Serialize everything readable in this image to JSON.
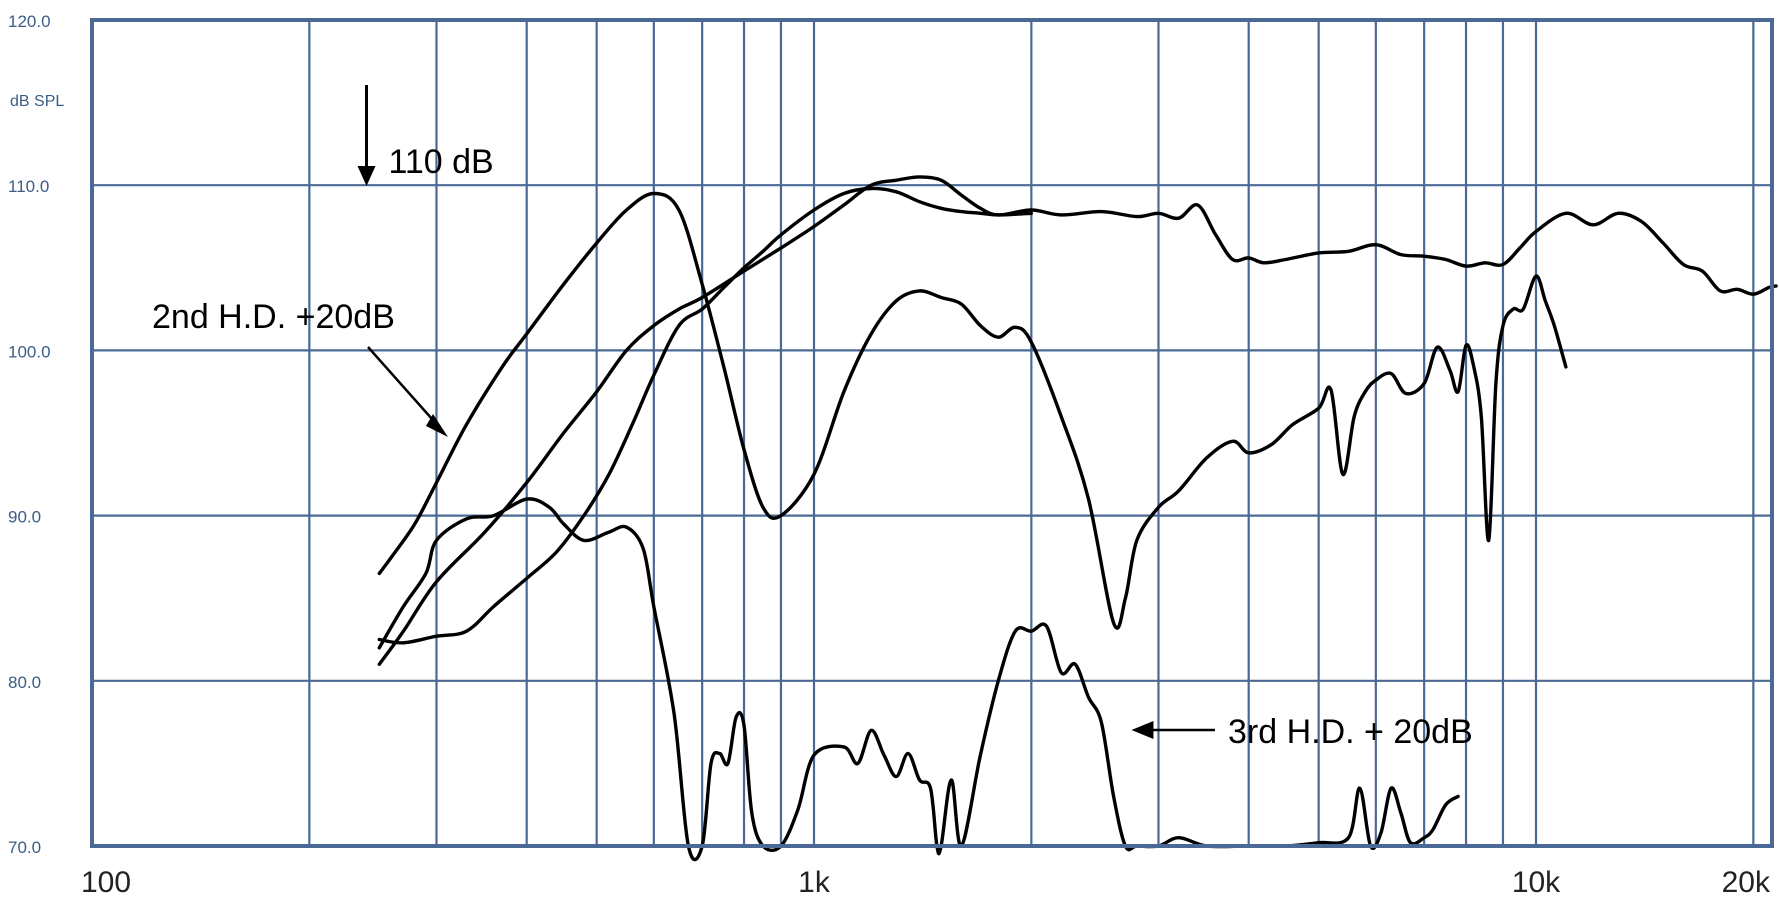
{
  "chart_data": {
    "type": "line",
    "title": "",
    "xlabel": "",
    "ylabel": "",
    "y_unit": "dB SPL",
    "x_scale": "log",
    "xlim": [
      100,
      22000
    ],
    "ylim": [
      70,
      120
    ],
    "grid": true,
    "y_ticks": [
      {
        "value": 120,
        "label": "120.0"
      },
      {
        "value": 110,
        "label": "110.0"
      },
      {
        "value": 100,
        "label": "100.0"
      },
      {
        "value": 90,
        "label": "90.0"
      },
      {
        "value": 80,
        "label": "80.0"
      },
      {
        "value": 70,
        "label": "70.0"
      }
    ],
    "x_ticks": [
      {
        "value": 100,
        "label": "100"
      },
      {
        "value": 1000,
        "label": "1k"
      },
      {
        "value": 10000,
        "label": "10k"
      },
      {
        "value": 20000,
        "label": "20k"
      }
    ],
    "annotations": [
      {
        "text": "110 dB",
        "x": 240,
        "y": 110
      },
      {
        "text": "2nd H.D. +20dB",
        "x": 300,
        "y": 95
      },
      {
        "text": "3rd H.D. + 20dB",
        "x": 2700,
        "y": 77
      }
    ],
    "series": [
      {
        "name": "",
        "x": [
          250,
          270,
          300,
          350,
          400,
          450,
          500,
          550,
          600,
          650,
          700,
          800,
          900,
          1000,
          1100,
          1200,
          1300,
          1400,
          1500,
          1600,
          1700,
          1800,
          2000,
          2200,
          2500,
          2800,
          3000,
          3200,
          3400,
          3600,
          3800,
          4000,
          4200,
          4500,
          5000,
          5500,
          6000,
          6500,
          7000,
          7500,
          8000,
          8500,
          9000,
          9500,
          10000,
          11000,
          12000,
          13000,
          14000,
          15000,
          16000,
          17000,
          18000,
          19000,
          20000,
          21000,
          21500
        ],
        "values": [
          81,
          83,
          86,
          89,
          92,
          95,
          97.5,
          100,
          101.5,
          102.5,
          103.2,
          104.8,
          106.2,
          107.5,
          108.8,
          110,
          110.3,
          110.5,
          110.3,
          109.4,
          108.6,
          108.2,
          108.5,
          108.2,
          108.4,
          108.1,
          108.3,
          108,
          108.8,
          107,
          105.5,
          105.6,
          105.3,
          105.5,
          105.9,
          106,
          106.4,
          105.8,
          105.7,
          105.5,
          105.1,
          105.3,
          105.2,
          106.2,
          107.2,
          108.3,
          107.6,
          108.3,
          107.8,
          106.5,
          105.2,
          104.8,
          103.6,
          103.7,
          103.4,
          103.8,
          103.9
        ]
      },
      {
        "name": "2nd H.D. +20dB",
        "x": [
          250,
          260,
          280,
          300,
          330,
          370,
          400,
          450,
          500,
          550,
          600,
          650,
          700,
          750,
          800,
          850,
          900,
          1000,
          1100,
          1200,
          1300,
          1400,
          1500,
          1600,
          1700,
          1800,
          1900,
          2000,
          2200,
          2400,
          2600,
          2700,
          2800,
          3000,
          3200,
          3500,
          3800,
          4000,
          4300,
          4600,
          5000,
          5200,
          5400,
          5600,
          5800,
          6000,
          6300,
          6600,
          7000,
          7300,
          7600,
          7800,
          8000,
          8200,
          8400,
          8600,
          8800,
          9000,
          9300,
          9600,
          10000,
          10300,
          10600,
          11000
        ],
        "values": [
          86.5,
          87.5,
          89.5,
          92,
          95.5,
          99,
          101,
          104,
          106.5,
          108.5,
          109.5,
          108.5,
          104,
          99,
          94,
          90.5,
          90,
          92.5,
          97.5,
          101,
          103,
          103.6,
          103.2,
          102.8,
          101.5,
          100.8,
          101.4,
          100.5,
          96,
          91,
          83.5,
          85,
          88.5,
          90.5,
          91.5,
          93.5,
          94.5,
          93.8,
          94.3,
          95.5,
          96.5,
          97.6,
          92.5,
          96,
          97.5,
          98.2,
          98.6,
          97.4,
          98,
          100.2,
          98.8,
          97.5,
          100.3,
          99,
          96,
          88.5,
          98,
          101.5,
          102.5,
          102.5,
          104.5,
          103,
          101.5,
          99
        ]
      },
      {
        "name": "",
        "x": [
          250,
          270,
          300,
          330,
          360,
          400,
          440,
          480,
          520,
          560,
          600,
          650,
          700,
          750,
          800,
          850,
          900,
          1000,
          1100,
          1200,
          1300,
          1400,
          1500,
          1600,
          1700,
          1800,
          2000
        ],
        "values": [
          82.5,
          82.3,
          82.7,
          83,
          84.5,
          86.2,
          87.8,
          90,
          92.5,
          95.5,
          98.5,
          101.5,
          102.5,
          103.8,
          105,
          106,
          107,
          108.5,
          109.5,
          109.8,
          109.6,
          109,
          108.6,
          108.4,
          108.3,
          108.2,
          108.3
        ]
      },
      {
        "name": "",
        "x": [
          250,
          270,
          290,
          300,
          330,
          360,
          400,
          430,
          450,
          480,
          520,
          550,
          580,
          600,
          640,
          670,
          700,
          720,
          740,
          760,
          780,
          800,
          820,
          850,
          900,
          950,
          1000,
          1100,
          1150,
          1200,
          1250,
          1300,
          1350,
          1400,
          1450,
          1480,
          1500,
          1550,
          1600,
          1700,
          1800,
          1900,
          2000,
          2100,
          2200,
          2300,
          2400,
          2500,
          2600,
          2700,
          2800,
          3000,
          3200,
          3500,
          4000,
          4500,
          5000,
          5500,
          5700,
          5900,
          6100,
          6300,
          6500,
          6700,
          7000,
          7200,
          7500,
          7800
        ],
        "values": [
          82,
          84.5,
          86.5,
          88.5,
          89.8,
          90,
          91,
          90.5,
          89.5,
          88.5,
          89,
          89.3,
          88,
          84.5,
          78,
          70,
          70,
          75,
          75.6,
          75,
          77.8,
          77.3,
          72,
          70,
          70,
          72.2,
          75.5,
          76,
          75,
          77,
          75.5,
          74.2,
          75.6,
          74,
          73.5,
          70,
          70,
          74,
          70,
          75.5,
          80,
          83,
          83,
          83.3,
          80.5,
          81,
          79,
          77.5,
          73,
          70,
          70,
          70,
          70.5,
          70,
          70,
          70,
          70.2,
          70.5,
          73.5,
          70,
          70.8,
          73.5,
          72,
          70.2,
          70.5,
          71,
          72.5,
          73
        ]
      }
    ]
  }
}
